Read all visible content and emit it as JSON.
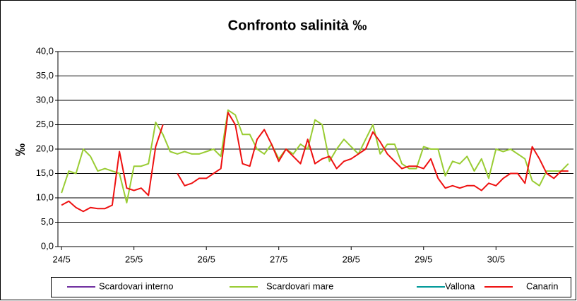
{
  "chart_data": {
    "type": "line",
    "title": "Confronto salinità ‰",
    "y_label": "‰",
    "x": [
      0,
      0.1,
      0.2,
      0.3,
      0.4,
      0.5,
      0.6,
      0.7,
      0.8,
      0.9,
      1,
      1.1,
      1.2,
      1.3,
      1.4,
      1.5,
      1.6,
      1.7,
      1.8,
      1.9,
      2,
      2.1,
      2.2,
      2.3,
      2.4,
      2.5,
      2.6,
      2.7,
      2.8,
      2.9,
      3,
      3.1,
      3.2,
      3.3,
      3.4,
      3.5,
      3.6,
      3.7,
      3.8,
      3.9,
      4,
      4.1,
      4.2,
      4.3,
      4.4,
      4.5,
      4.6,
      4.7,
      4.8,
      4.9,
      5,
      5.1,
      5.2,
      5.3,
      5.4,
      5.5,
      5.6,
      5.7,
      5.8,
      5.9,
      6,
      6.1,
      6.2,
      6.3,
      6.4,
      6.5,
      6.6,
      6.7,
      6.8,
      6.9,
      7
    ],
    "xlim": [
      -0.05,
      7.07
    ],
    "xticks": [
      {
        "value": 0,
        "label": "24/5"
      },
      {
        "value": 1,
        "label": "25/5"
      },
      {
        "value": 2,
        "label": "26/5"
      },
      {
        "value": 3,
        "label": "27/5"
      },
      {
        "value": 4,
        "label": "28/5"
      },
      {
        "value": 5,
        "label": "29/5"
      },
      {
        "value": 6,
        "label": "30/5"
      }
    ],
    "ylim": [
      0,
      40
    ],
    "yticks": [
      {
        "value": 0,
        "label": "0,0"
      },
      {
        "value": 5,
        "label": "5,0"
      },
      {
        "value": 10,
        "label": "10,0"
      },
      {
        "value": 15,
        "label": "15,0"
      },
      {
        "value": 20,
        "label": "20,0"
      },
      {
        "value": 25,
        "label": "25,0"
      },
      {
        "value": 30,
        "label": "30,0"
      },
      {
        "value": 35,
        "label": "35,0"
      },
      {
        "value": 40,
        "label": "40,0"
      }
    ],
    "grid": true,
    "legend": "bottom",
    "series": [
      {
        "name": "Scardovari interno",
        "color": "#7030a0",
        "values": [
          null,
          null,
          null,
          null,
          null,
          null,
          null,
          null,
          null,
          null,
          null,
          null,
          null,
          null,
          null,
          null,
          null,
          null,
          null,
          null,
          null,
          null,
          null,
          null,
          null,
          null,
          null,
          null,
          null,
          null,
          null,
          null,
          null,
          null,
          null,
          null,
          null,
          null,
          null,
          null,
          null,
          null,
          null,
          null,
          null,
          null,
          null,
          null,
          null,
          null,
          null,
          null,
          null,
          null,
          null,
          null,
          null,
          null,
          null,
          null,
          null,
          null,
          null,
          null,
          null,
          null,
          null,
          null,
          null,
          null,
          null
        ]
      },
      {
        "name": "Scardovari mare",
        "color": "#99cc33",
        "values": [
          11,
          15.5,
          15,
          20,
          18.5,
          15.5,
          16,
          15.5,
          15,
          9,
          16.5,
          16.5,
          17,
          25.5,
          23,
          19.5,
          19,
          19.5,
          19,
          19,
          19.5,
          20,
          18.5,
          28,
          27,
          23,
          23,
          20,
          19,
          21,
          18,
          20,
          19,
          21,
          20,
          26,
          25,
          17.5,
          20,
          22,
          20.5,
          19,
          22,
          25,
          19,
          21,
          21,
          17,
          16,
          16,
          20.5,
          20,
          20,
          14.5,
          17.5,
          17,
          18.5,
          15.5,
          18,
          14,
          20,
          19.5,
          20,
          19,
          18,
          13.5,
          12.5,
          15.5,
          15.5,
          15.5,
          17
        ]
      },
      {
        "name": "Vallona",
        "color": "#009999",
        "values": [
          null,
          null,
          null,
          null,
          null,
          null,
          null,
          null,
          null,
          null,
          null,
          null,
          null,
          null,
          null,
          null,
          null,
          null,
          null,
          null,
          null,
          null,
          null,
          null,
          null,
          null,
          null,
          null,
          null,
          null,
          null,
          null,
          null,
          null,
          null,
          null,
          null,
          null,
          null,
          null,
          null,
          null,
          null,
          null,
          null,
          null,
          null,
          null,
          null,
          null,
          null,
          null,
          null,
          null,
          null,
          null,
          null,
          null,
          null,
          null,
          null,
          null,
          null,
          null,
          null,
          null,
          null,
          null,
          null,
          null,
          null
        ]
      },
      {
        "name": "Canarin",
        "color": "#ee1111",
        "values": [
          8.5,
          9.3,
          8,
          7.2,
          8,
          7.8,
          7.8,
          8.5,
          19.5,
          12,
          11.5,
          12,
          10.5,
          20.5,
          25,
          null,
          15,
          12.5,
          13,
          14,
          14,
          15,
          16,
          27.5,
          25,
          17,
          16.5,
          22,
          24,
          21,
          17.5,
          20,
          18.5,
          17,
          22,
          17,
          18,
          18.5,
          16,
          17.5,
          18,
          19,
          20,
          23.5,
          21.5,
          19,
          17.5,
          16,
          16.5,
          16.5,
          16,
          18,
          14,
          12,
          12.5,
          12,
          12.5,
          12.5,
          11.5,
          13,
          12.5,
          14,
          15,
          15,
          13,
          20.5,
          18,
          15,
          14,
          15.5,
          15.5
        ]
      }
    ]
  }
}
